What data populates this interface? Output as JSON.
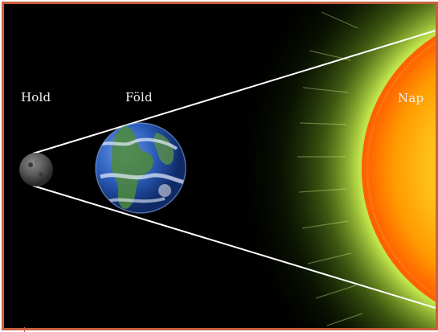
{
  "labels": {
    "moon": "Hold",
    "earth": "Föld",
    "sun": "Nap"
  },
  "colors": {
    "frame": "#c8613f",
    "background": "#000000",
    "sun_core": "#ff8a00",
    "sun_corona": "#d7f26a",
    "earth_ocean": "#2a5bb8",
    "earth_land": "#4f8a3a",
    "moon": "#5a5a5a",
    "shadow_lines": "#ffffff"
  }
}
